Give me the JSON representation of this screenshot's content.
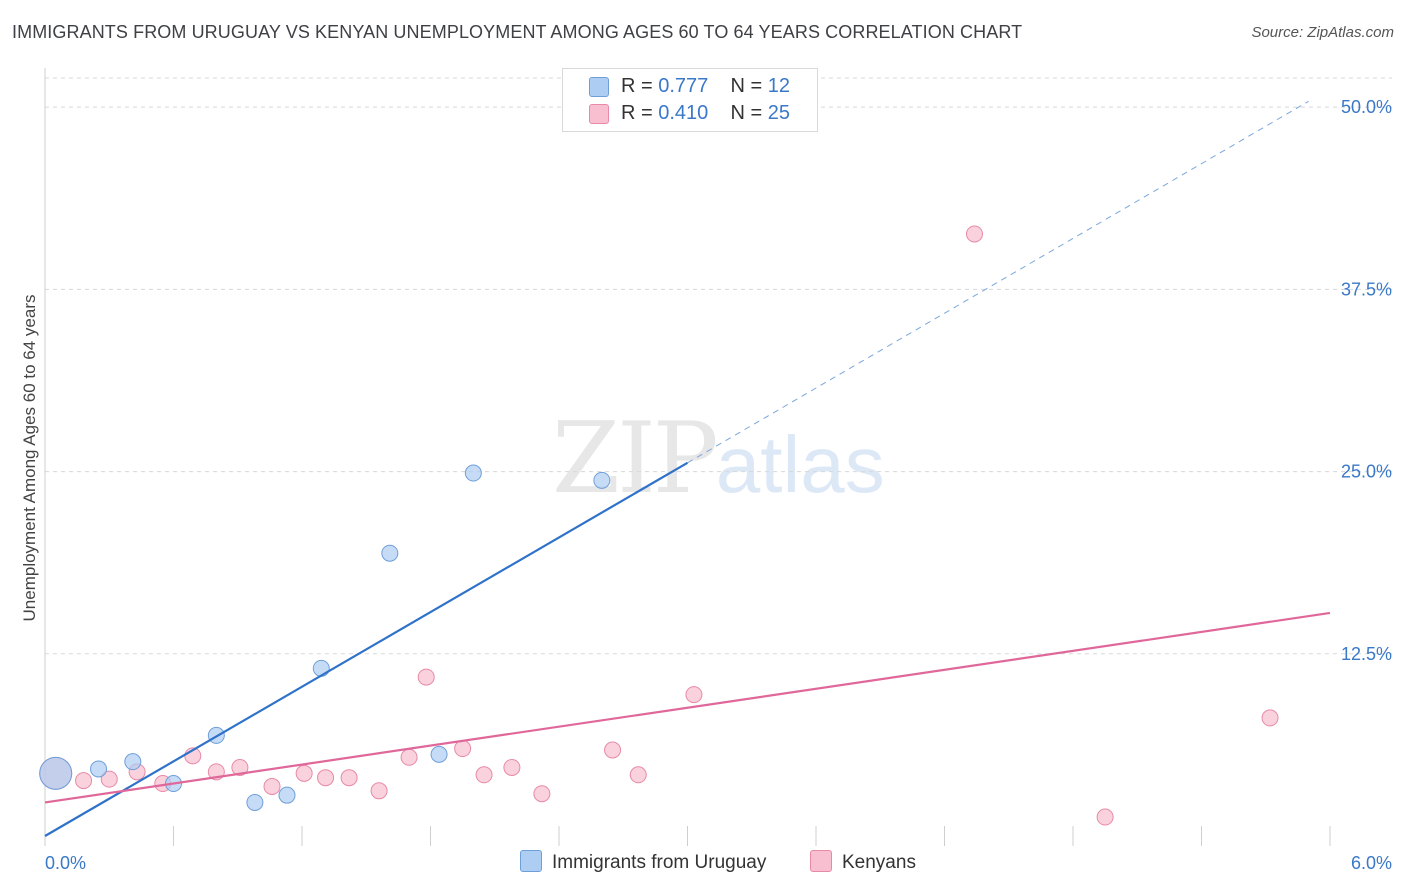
{
  "header": {
    "title": "IMMIGRANTS FROM URUGUAY VS KENYAN UNEMPLOYMENT AMONG AGES 60 TO 64 YEARS CORRELATION CHART",
    "source": "Source: ZipAtlas.com"
  },
  "watermark": {
    "zip": "ZIP",
    "atlas": "atlas"
  },
  "legend": {
    "rows": [
      {
        "r_label": "R = ",
        "r_value": "0.777",
        "n_label": "N = ",
        "n_value": "12",
        "color": "#aecdf2"
      },
      {
        "r_label": "R = ",
        "r_value": "0.410",
        "n_label": "N = ",
        "n_value": "25",
        "color": "#f7bfcf"
      }
    ]
  },
  "chart_data": {
    "type": "scatter",
    "title": "IMMIGRANTS FROM URUGUAY VS KENYAN UNEMPLOYMENT AMONG AGES 60 TO 64 YEARS CORRELATION CHART",
    "xlabel": "",
    "ylabel": "Unemployment Among Ages 60 to 64 years",
    "xlim": [
      0,
      6.0
    ],
    "ylim": [
      0,
      52
    ],
    "x_tick_labels": [
      "0.0%",
      "6.0%"
    ],
    "y_ticks": [
      12.5,
      25.0,
      37.5,
      50.0
    ],
    "y_tick_labels": [
      "12.5%",
      "25.0%",
      "37.5%",
      "50.0%"
    ],
    "grid": "horizontal dashed",
    "legend_position": "top-center",
    "series": [
      {
        "name": "Immigrants from Uruguay",
        "color": "#aecdf2",
        "stroke": "#6e9fd9",
        "line_color": "#2f72c9",
        "points": [
          {
            "x": 0.05,
            "y": 4.3,
            "big": true
          },
          {
            "x": 0.25,
            "y": 4.6
          },
          {
            "x": 0.41,
            "y": 5.1
          },
          {
            "x": 0.6,
            "y": 3.6
          },
          {
            "x": 0.8,
            "y": 6.9
          },
          {
            "x": 0.98,
            "y": 2.3
          },
          {
            "x": 1.13,
            "y": 2.8
          },
          {
            "x": 1.29,
            "y": 11.5
          },
          {
            "x": 1.61,
            "y": 19.4
          },
          {
            "x": 1.84,
            "y": 5.6
          },
          {
            "x": 2.0,
            "y": 24.9
          },
          {
            "x": 2.6,
            "y": 24.4
          }
        ],
        "trend": {
          "x0": 0.0,
          "y0": 0.0,
          "x1": 3.0,
          "y1": 25.6,
          "dashed_to_x": 5.9,
          "dashed_to_y": 50.4
        }
      },
      {
        "name": "Kenyans",
        "color": "#f7bfcf",
        "stroke": "#e88aa6",
        "line_color": "#e0679a",
        "points": [
          {
            "x": 0.05,
            "y": 4.3,
            "big": true
          },
          {
            "x": 0.18,
            "y": 3.8
          },
          {
            "x": 0.3,
            "y": 3.9
          },
          {
            "x": 0.43,
            "y": 4.4
          },
          {
            "x": 0.55,
            "y": 3.6
          },
          {
            "x": 0.69,
            "y": 5.5
          },
          {
            "x": 0.8,
            "y": 4.4
          },
          {
            "x": 0.91,
            "y": 4.7
          },
          {
            "x": 1.06,
            "y": 3.4
          },
          {
            "x": 1.21,
            "y": 4.3
          },
          {
            "x": 1.31,
            "y": 4.0
          },
          {
            "x": 1.42,
            "y": 4.0
          },
          {
            "x": 1.56,
            "y": 3.1
          },
          {
            "x": 1.7,
            "y": 5.4
          },
          {
            "x": 1.78,
            "y": 10.9
          },
          {
            "x": 1.95,
            "y": 6.0
          },
          {
            "x": 2.05,
            "y": 4.2
          },
          {
            "x": 2.18,
            "y": 4.7
          },
          {
            "x": 2.32,
            "y": 2.9
          },
          {
            "x": 2.65,
            "y": 5.9
          },
          {
            "x": 2.77,
            "y": 4.2
          },
          {
            "x": 3.03,
            "y": 9.7
          },
          {
            "x": 4.34,
            "y": 41.3
          },
          {
            "x": 4.95,
            "y": 1.3
          },
          {
            "x": 5.72,
            "y": 8.1
          }
        ],
        "trend": {
          "x0": 0.0,
          "y0": 2.3,
          "x1": 6.0,
          "y1": 15.3
        }
      }
    ]
  }
}
